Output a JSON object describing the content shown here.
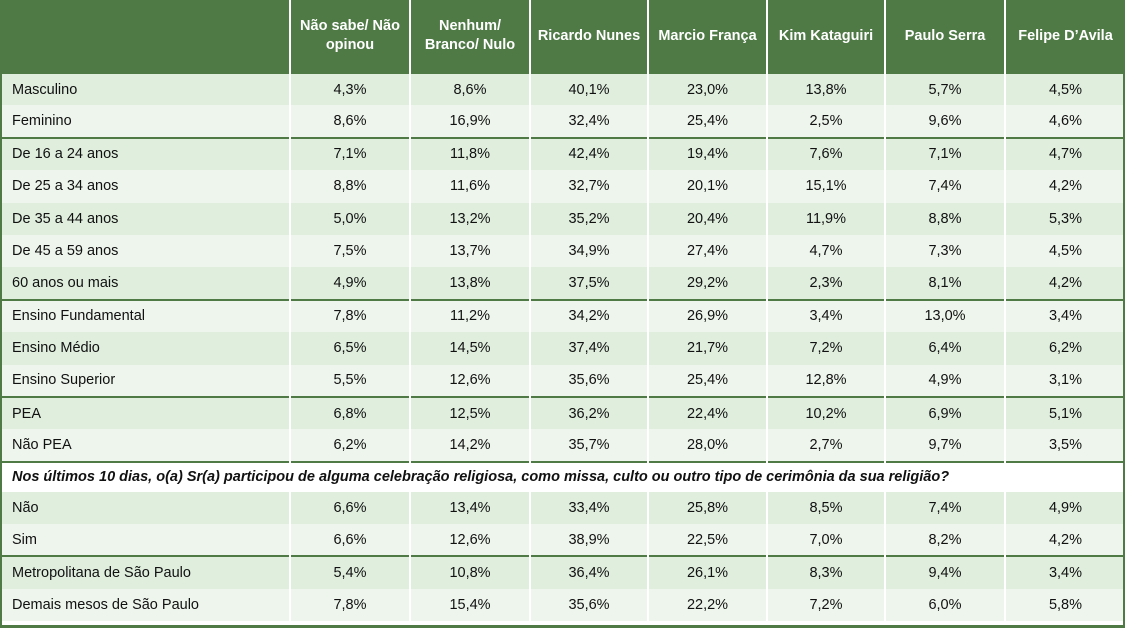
{
  "header": {
    "columns": [
      "",
      "Não sabe/ Não opinou",
      "Nenhum/ Branco/ Nulo",
      "Ricardo Nunes",
      "Marcio França",
      "Kim Kataguiri",
      "Paulo Serra",
      "Felipe D’Avila"
    ]
  },
  "groups": [
    {
      "rows": [
        {
          "label": "Masculino",
          "values": [
            "4,3%",
            "8,6%",
            "40,1%",
            "23,0%",
            "13,8%",
            "5,7%",
            "4,5%"
          ]
        },
        {
          "label": "Feminino",
          "values": [
            "8,6%",
            "16,9%",
            "32,4%",
            "25,4%",
            "2,5%",
            "9,6%",
            "4,6%"
          ]
        }
      ]
    },
    {
      "rows": [
        {
          "label": "De 16 a 24 anos",
          "values": [
            "7,1%",
            "11,8%",
            "42,4%",
            "19,4%",
            "7,6%",
            "7,1%",
            "4,7%"
          ]
        },
        {
          "label": "De 25 a 34 anos",
          "values": [
            "8,8%",
            "11,6%",
            "32,7%",
            "20,1%",
            "15,1%",
            "7,4%",
            "4,2%"
          ]
        },
        {
          "label": "De 35 a 44 anos",
          "values": [
            "5,0%",
            "13,2%",
            "35,2%",
            "20,4%",
            "11,9%",
            "8,8%",
            "5,3%"
          ]
        },
        {
          "label": "De 45 a 59 anos",
          "values": [
            "7,5%",
            "13,7%",
            "34,9%",
            "27,4%",
            "4,7%",
            "7,3%",
            "4,5%"
          ]
        },
        {
          "label": "60 anos ou mais",
          "values": [
            "4,9%",
            "13,8%",
            "37,5%",
            "29,2%",
            "2,3%",
            "8,1%",
            "4,2%"
          ]
        }
      ]
    },
    {
      "rows": [
        {
          "label": "Ensino Fundamental",
          "values": [
            "7,8%",
            "11,2%",
            "34,2%",
            "26,9%",
            "3,4%",
            "13,0%",
            "3,4%"
          ]
        },
        {
          "label": "Ensino Médio",
          "values": [
            "6,5%",
            "14,5%",
            "37,4%",
            "21,7%",
            "7,2%",
            "6,4%",
            "6,2%"
          ]
        },
        {
          "label": "Ensino Superior",
          "values": [
            "5,5%",
            "12,6%",
            "35,6%",
            "25,4%",
            "12,8%",
            "4,9%",
            "3,1%"
          ]
        }
      ]
    },
    {
      "rows": [
        {
          "label": "PEA",
          "values": [
            "6,8%",
            "12,5%",
            "36,2%",
            "22,4%",
            "10,2%",
            "6,9%",
            "5,1%"
          ]
        },
        {
          "label": "Não PEA",
          "values": [
            "6,2%",
            "14,2%",
            "35,7%",
            "28,0%",
            "2,7%",
            "9,7%",
            "3,5%"
          ]
        }
      ]
    },
    {
      "question": "Nos últimos 10 dias, o(a) Sr(a) participou de alguma celebração religiosa, como missa, culto ou outro tipo de cerimônia da sua religião?",
      "rows": [
        {
          "label": "Não",
          "values": [
            "6,6%",
            "13,4%",
            "33,4%",
            "25,8%",
            "8,5%",
            "7,4%",
            "4,9%"
          ]
        },
        {
          "label": "Sim",
          "values": [
            "6,6%",
            "12,6%",
            "38,9%",
            "22,5%",
            "7,0%",
            "8,2%",
            "4,2%"
          ]
        }
      ]
    },
    {
      "rows": [
        {
          "label": "Metropolitana de São Paulo",
          "values": [
            "5,4%",
            "10,8%",
            "36,4%",
            "26,1%",
            "8,3%",
            "9,4%",
            "3,4%"
          ]
        },
        {
          "label": "Demais mesos de São Paulo",
          "values": [
            "7,8%",
            "15,4%",
            "35,6%",
            "22,2%",
            "7,2%",
            "6,0%",
            "5,8%"
          ]
        }
      ]
    }
  ],
  "colors": {
    "header_bg": "#4f7a46",
    "row_shade_a": "#dfeedd",
    "row_shade_b": "#edf5ec",
    "rule": "#4f7a46"
  }
}
